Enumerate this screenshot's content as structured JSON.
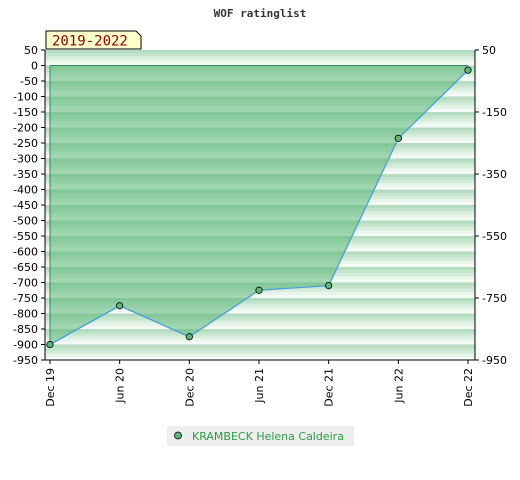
{
  "chart_data": {
    "type": "area",
    "title": "WOF ratinglist",
    "badge": "2019-2022",
    "categories": [
      "Dec 19",
      "Jun 20",
      "Dec 20",
      "Jun 21",
      "Dec 21",
      "Jun 22",
      "Dec 22"
    ],
    "series": [
      {
        "name": "KRAMBECK Helena Caldeira",
        "values": [
          -900,
          -775,
          -875,
          -725,
          -710,
          -235,
          -15
        ]
      }
    ],
    "ylim": [
      -950,
      50
    ],
    "left_ticks": [
      "50",
      "0",
      "-50",
      "-100",
      "-150",
      "-200",
      "-250",
      "-300",
      "-350",
      "-400",
      "-450",
      "-500",
      "-550",
      "-600",
      "-650",
      "-700",
      "-750",
      "-800",
      "-850",
      "-900",
      "-950"
    ],
    "left_tick_values": [
      50,
      0,
      -50,
      -100,
      -150,
      -200,
      -250,
      -300,
      -350,
      -400,
      -450,
      -500,
      -550,
      -600,
      -650,
      -700,
      -750,
      -800,
      -850,
      -900,
      -950
    ],
    "right_ticks": [
      "50",
      "-150",
      "-350",
      "-550",
      "-750",
      "-950"
    ],
    "right_tick_values": [
      50,
      -150,
      -350,
      -550,
      -750,
      -950
    ],
    "colors": {
      "line": "#4a9fd8",
      "fill": "#5cb87a",
      "marker": "#2e8b57",
      "legend_text": "#2e9a45",
      "badge_bg": "#ffffcc"
    },
    "grid": true,
    "legend_position": "bottom"
  }
}
